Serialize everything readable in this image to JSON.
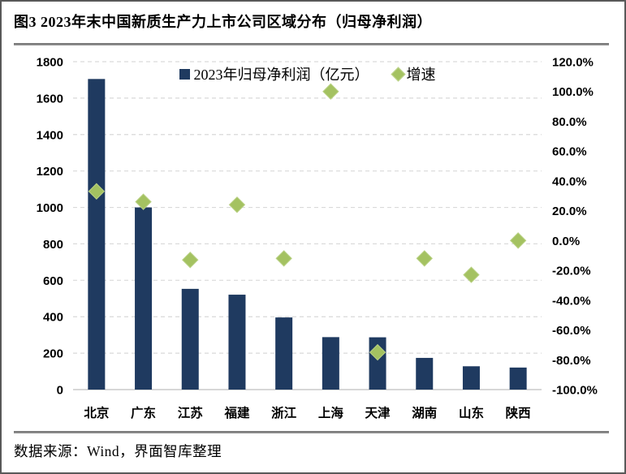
{
  "page": {
    "title": "图3 2023年末中国新质生产力上市公司区域分布（归母净利润）",
    "source_note": "数据来源：Wind，界面智库整理"
  },
  "chart_data": {
    "type": "combo-bar-scatter",
    "title": "图3 2023年末中国新质生产力上市公司区域分布（归母净利润）",
    "categories": [
      "北京",
      "广东",
      "江苏",
      "福建",
      "浙江",
      "上海",
      "天津",
      "湖南",
      "山东",
      "陕西"
    ],
    "series": [
      {
        "name": "2023年归母净利润（亿元）",
        "type": "bar",
        "axis": "left",
        "color": "#1f3a60",
        "values": [
          1705,
          1000,
          553,
          521,
          396,
          288,
          287,
          174,
          128,
          121
        ]
      },
      {
        "name": "增速",
        "type": "scatter",
        "marker": "diamond",
        "axis": "right",
        "color": "#a4c261",
        "values": [
          33,
          26,
          -13,
          24,
          -12,
          100,
          -75,
          -12,
          -23,
          0
        ]
      }
    ],
    "left_axis": {
      "min": 0,
      "max": 1800,
      "step": 200,
      "ticks_top_to_bottom": [
        "1800",
        "1600",
        "1400",
        "1200",
        "1000",
        "800",
        "600",
        "400",
        "200",
        "0"
      ]
    },
    "right_axis": {
      "min": -100,
      "max": 120,
      "step": 20,
      "unit": "%",
      "ticks_top_to_bottom": [
        "120.0%",
        "100.0%",
        "80.0%",
        "60.0%",
        "40.0%",
        "20.0%",
        "0.0%",
        "-20.0%",
        "-40.0%",
        "-60.0%",
        "-80.0%",
        "-100.0%"
      ]
    },
    "legend_position": "top-center-inside",
    "grid": "horizontal-dashed",
    "colors": {
      "bar": "#1f3a60",
      "diamond": "#a4c261",
      "gridline": "#d9d9d9",
      "axis_line": "#bfbfbf",
      "divider": "#808080"
    }
  }
}
